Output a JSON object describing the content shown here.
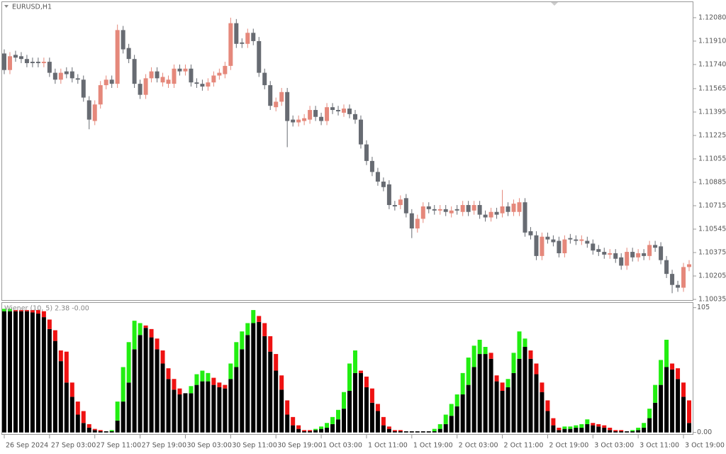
{
  "chart_data": [
    {
      "type": "candlestick",
      "title": "EURUSD,H1",
      "up_color": "#e5887b",
      "down_color": "#676b72",
      "open": [
        1.1182,
        1.117,
        1.1181,
        1.118,
        1.1178,
        1.1176,
        1.1176,
        1.1175,
        1.1176,
        1.1168,
        1.1163,
        1.1169,
        1.1169,
        1.1164,
        1.1163,
        1.1148,
        1.1133,
        1.1145,
        1.1159,
        1.1163,
        1.116,
        1.1199,
        1.1186,
        1.1178,
        1.116,
        1.1152,
        1.1164,
        1.1169,
        1.1161,
        1.116,
        1.116,
        1.1171,
        1.1169,
        1.1171,
        1.1161,
        1.116,
        1.1158,
        1.1161,
        1.1166,
        1.1167,
        1.1173,
        1.1204,
        1.119,
        1.1189,
        1.1197,
        1.1191,
        1.1168,
        1.1159,
        1.1143,
        1.1147,
        1.1154,
        1.1134,
        1.1132,
        1.1133,
        1.1134,
        1.1141,
        1.1136,
        1.1133,
        1.1143,
        1.1141,
        1.1139,
        1.1142,
        1.1138,
        1.1134,
        1.1116,
        1.1104,
        1.1096,
        1.1089,
        1.1087,
        1.1072,
        1.1072,
        1.1077,
        1.1066,
        1.1055,
        1.1062,
        1.1071,
        1.1069,
        1.1068,
        1.1069,
        1.1066,
        1.1069,
        1.1067,
        1.1072,
        1.1068,
        1.1072,
        1.1065,
        1.1063,
        1.1067,
        1.1066,
        1.1071,
        1.1067,
        1.1067,
        1.1074,
        1.1053,
        1.105,
        1.1035,
        1.1049,
        1.1047,
        1.1046,
        1.1037,
        1.1048,
        1.1047,
        1.1046,
        1.1046,
        1.1044,
        1.104,
        1.1038,
        1.1036,
        1.1037,
        1.1034,
        1.1028,
        1.1038,
        1.1034,
        1.1037,
        1.1035,
        1.1043,
        1.1042,
        1.1032,
        1.1022,
        1.1014,
        1.1012,
        1.1027
      ],
      "high": [
        1.1185,
        1.1183,
        1.1184,
        1.1183,
        1.1181,
        1.1179,
        1.1179,
        1.1179,
        1.1179,
        1.1171,
        1.1171,
        1.1172,
        1.1172,
        1.1167,
        1.1166,
        1.1151,
        1.1148,
        1.1162,
        1.1166,
        1.1166,
        1.1203,
        1.1202,
        1.1189,
        1.1181,
        1.1163,
        1.1167,
        1.1172,
        1.1172,
        1.1168,
        1.1166,
        1.1174,
        1.1174,
        1.1174,
        1.1174,
        1.1164,
        1.1163,
        1.1164,
        1.1169,
        1.1171,
        1.1176,
        1.1208,
        1.1207,
        1.1193,
        1.12,
        1.12,
        1.1194,
        1.1171,
        1.1162,
        1.115,
        1.1157,
        1.1157,
        1.1137,
        1.1137,
        1.1138,
        1.1144,
        1.1144,
        1.1139,
        1.1146,
        1.1146,
        1.1144,
        1.1145,
        1.1145,
        1.1141,
        1.1137,
        1.1119,
        1.1107,
        1.1099,
        1.1092,
        1.109,
        1.1075,
        1.1079,
        1.108,
        1.1069,
        1.1065,
        1.1074,
        1.1074,
        1.1072,
        1.1072,
        1.1072,
        1.1071,
        1.1072,
        1.1075,
        1.1075,
        1.1075,
        1.1075,
        1.1068,
        1.107,
        1.107,
        1.1083,
        1.1074,
        1.1076,
        1.1077,
        1.1077,
        1.1056,
        1.1053,
        1.1052,
        1.1052,
        1.105,
        1.1049,
        1.105,
        1.1051,
        1.105,
        1.105,
        1.1049,
        1.1047,
        1.1043,
        1.1041,
        1.104,
        1.104,
        1.1037,
        1.1041,
        1.1041,
        1.104,
        1.104,
        1.1046,
        1.1046,
        1.1045,
        1.1035,
        1.1025,
        1.1017,
        1.103,
        1.1032
      ],
      "low": [
        1.1167,
        1.1167,
        1.1176,
        1.1175,
        1.1172,
        1.1172,
        1.1172,
        1.1172,
        1.1165,
        1.116,
        1.116,
        1.1164,
        1.1161,
        1.116,
        1.1147,
        1.1127,
        1.113,
        1.1142,
        1.1156,
        1.1157,
        1.1157,
        1.1182,
        1.1175,
        1.1157,
        1.1149,
        1.1149,
        1.1161,
        1.1161,
        1.1158,
        1.1157,
        1.1157,
        1.1166,
        1.1166,
        1.1158,
        1.1157,
        1.1155,
        1.1155,
        1.1158,
        1.1163,
        1.1164,
        1.117,
        1.1186,
        1.1186,
        1.1186,
        1.1188,
        1.1165,
        1.1156,
        1.1141,
        1.114,
        1.1144,
        1.1114,
        1.1129,
        1.1129,
        1.113,
        1.1131,
        1.1133,
        1.113,
        1.113,
        1.1138,
        1.1137,
        1.1136,
        1.1135,
        1.1131,
        1.1113,
        1.1101,
        1.1093,
        1.1086,
        1.1082,
        1.1069,
        1.1068,
        1.1069,
        1.1063,
        1.1048,
        1.1052,
        1.1059,
        1.1066,
        1.1065,
        1.1065,
        1.1064,
        1.1063,
        1.1065,
        1.1064,
        1.1064,
        1.1065,
        1.1062,
        1.106,
        1.106,
        1.1062,
        1.1063,
        1.1064,
        1.1064,
        1.1064,
        1.1049,
        1.1047,
        1.1032,
        1.1032,
        1.1044,
        1.1042,
        1.1034,
        1.1034,
        1.1044,
        1.1043,
        1.1043,
        1.1041,
        1.1036,
        1.1035,
        1.1033,
        1.1033,
        1.103,
        1.1025,
        1.1025,
        1.1031,
        1.1031,
        1.1032,
        1.1032,
        1.1038,
        1.1029,
        1.1019,
        1.1008,
        1.1009,
        1.1009,
        1.1024
      ],
      "close": [
        1.117,
        1.118,
        1.1179,
        1.1178,
        1.1175,
        1.1175,
        1.1175,
        1.1176,
        1.1168,
        1.1163,
        1.1168,
        1.1167,
        1.1164,
        1.1163,
        1.115,
        1.1134,
        1.1145,
        1.1159,
        1.1163,
        1.116,
        1.1199,
        1.1185,
        1.1178,
        1.116,
        1.1152,
        1.1164,
        1.1169,
        1.1164,
        1.1165,
        1.1163,
        1.1171,
        1.1169,
        1.1171,
        1.1161,
        1.116,
        1.1158,
        1.1161,
        1.1166,
        1.1168,
        1.1173,
        1.1204,
        1.1189,
        1.1189,
        1.1197,
        1.1191,
        1.1168,
        1.1159,
        1.1144,
        1.1147,
        1.1154,
        1.1133,
        1.1132,
        1.1134,
        1.1135,
        1.1141,
        1.1136,
        1.1133,
        1.1143,
        1.1141,
        1.114,
        1.1142,
        1.1138,
        1.1134,
        1.1116,
        1.1104,
        1.1096,
        1.1089,
        1.1085,
        1.1072,
        1.1071,
        1.1076,
        1.1066,
        1.1055,
        1.1062,
        1.1071,
        1.1069,
        1.1068,
        1.1069,
        1.1067,
        1.1068,
        1.1068,
        1.1072,
        1.1067,
        1.1072,
        1.1065,
        1.1063,
        1.1067,
        1.1065,
        1.1071,
        1.1067,
        1.1073,
        1.1074,
        1.1052,
        1.105,
        1.1035,
        1.1049,
        1.1047,
        1.1045,
        1.1037,
        1.1047,
        1.1047,
        1.1046,
        1.1047,
        1.1044,
        1.1039,
        1.1038,
        1.1036,
        1.1037,
        1.1033,
        1.1028,
        1.1038,
        1.1034,
        1.1037,
        1.1035,
        1.1043,
        1.1041,
        1.1032,
        1.1022,
        1.1014,
        1.1012,
        1.1027,
        1.1029
      ],
      "xlim": [
        -0.5,
        121.75
      ],
      "ylim": [
        1.10025,
        1.12198
      ],
      "yticks": [
        {
          "value": 1.1208,
          "label": "1.12080"
        },
        {
          "value": 1.1191,
          "label": "1.11910"
        },
        {
          "value": 1.1174,
          "label": "1.11740"
        },
        {
          "value": 1.11565,
          "label": "1.11565"
        },
        {
          "value": 1.11395,
          "label": "1.11395"
        },
        {
          "value": 1.11225,
          "label": "1.11225"
        },
        {
          "value": 1.11055,
          "label": "1.11055"
        },
        {
          "value": 1.10885,
          "label": "1.10885"
        },
        {
          "value": 1.10715,
          "label": "1.10715"
        },
        {
          "value": 1.10545,
          "label": "1.10545"
        },
        {
          "value": 1.10375,
          "label": "1.10375"
        },
        {
          "value": 1.10205,
          "label": "1.10205"
        },
        {
          "value": 1.10035,
          "label": "1.10035"
        }
      ],
      "xticks": [
        {
          "value": 0,
          "label": "26 Sep 2024"
        },
        {
          "value": 8,
          "label": "27 Sep 03:00"
        },
        {
          "value": 16,
          "label": "27 Sep 11:00"
        },
        {
          "value": 24,
          "label": "27 Sep 19:00"
        },
        {
          "value": 32,
          "label": "30 Sep 03:00"
        },
        {
          "value": 40,
          "label": "30 Sep 11:00"
        },
        {
          "value": 48,
          "label": "30 Sep 19:00"
        },
        {
          "value": 56,
          "label": "1 Oct 03:00"
        },
        {
          "value": 64,
          "label": "1 Oct 11:00"
        },
        {
          "value": 72,
          "label": "1 Oct 19:00"
        },
        {
          "value": 80,
          "label": "2 Oct 03:00"
        },
        {
          "value": 88,
          "label": "2 Oct 11:00"
        },
        {
          "value": 96,
          "label": "2 Oct 19:00"
        },
        {
          "value": 104,
          "label": "3 Oct 03:00"
        },
        {
          "value": 112,
          "label": "3 Oct 11:00"
        },
        {
          "value": 120,
          "label": "3 Oct 19:00"
        }
      ]
    },
    {
      "type": "stacked-bar",
      "title": "Wiener (10, 5) 2.38 -0.00",
      "ylim": [
        -2,
        109
      ],
      "yticks": [
        105,
        {
          "value": 0,
          "label": "0.00"
        }
      ],
      "series": [
        {
          "color": "#000000",
          "values": [
            102,
            102,
            102,
            102,
            102,
            101,
            100,
            97,
            87,
            77,
            60,
            42,
            30,
            15,
            8,
            4,
            2,
            1,
            1,
            1,
            10,
            26,
            42,
            70,
            82,
            88,
            80,
            70,
            58,
            45,
            36,
            32,
            33,
            33,
            40,
            43,
            43,
            40,
            38,
            37,
            45,
            55,
            70,
            82,
            92,
            93,
            81,
            68,
            52,
            36,
            15,
            6,
            3,
            1,
            1,
            2,
            3,
            4,
            7,
            11,
            20,
            35,
            50,
            50,
            38,
            25,
            18,
            6,
            3,
            1,
            1,
            1,
            1,
            1,
            1,
            1,
            1,
            3,
            7,
            14,
            22,
            32,
            40,
            55,
            66,
            66,
            62,
            43,
            35,
            38,
            50,
            62,
            72,
            62,
            49,
            34,
            18,
            6,
            2,
            3,
            3,
            4,
            4,
            7,
            6,
            5,
            4,
            2,
            1,
            1,
            1,
            1,
            2,
            4,
            12,
            25,
            40,
            55,
            53,
            45,
            30,
            8
          ]
        },
        {
          "color": "#22ee11",
          "values": [
            2,
            2,
            0,
            0,
            0,
            0,
            0,
            0,
            0,
            0,
            0,
            0,
            0,
            0,
            0,
            0,
            0,
            0,
            0,
            1,
            16,
            29,
            34,
            24,
            10,
            0,
            0,
            0,
            0,
            0,
            0,
            0,
            0,
            6,
            9,
            9,
            7,
            0,
            0,
            0,
            13,
            21,
            15,
            10,
            11,
            0,
            0,
            0,
            0,
            0,
            0,
            0,
            0,
            0,
            0,
            1,
            2,
            4,
            6,
            8,
            14,
            23,
            19,
            0,
            0,
            0,
            0,
            0,
            0,
            0,
            0,
            0,
            0,
            0,
            0,
            0,
            2,
            4,
            8,
            10,
            10,
            18,
            23,
            18,
            12,
            6,
            0,
            0,
            0,
            7,
            17,
            23,
            7,
            0,
            0,
            0,
            0,
            0,
            0,
            2,
            2,
            2,
            3,
            4,
            0,
            0,
            0,
            0,
            0,
            0,
            0,
            1,
            2,
            4,
            8,
            15,
            21,
            23,
            0,
            0,
            0,
            0
          ]
        },
        {
          "color": "#ee1111",
          "values": [
            0,
            0,
            1,
            1,
            1,
            2,
            3,
            5,
            8,
            9,
            9,
            26,
            12,
            11,
            10,
            3,
            1,
            1,
            0,
            0,
            0,
            0,
            0,
            0,
            0,
            2,
            7,
            9,
            11,
            9,
            9,
            5,
            0,
            0,
            0,
            0,
            0,
            6,
            4,
            3,
            0,
            0,
            0,
            0,
            0,
            5,
            11,
            13,
            14,
            12,
            12,
            7,
            3,
            1,
            1,
            0,
            0,
            0,
            0,
            0,
            0,
            0,
            0,
            2,
            9,
            12,
            6,
            7,
            2,
            1,
            1,
            0,
            0,
            0,
            0,
            0,
            0,
            0,
            0,
            0,
            0,
            0,
            0,
            0,
            0,
            0,
            5,
            5,
            7,
            0,
            0,
            0,
            0,
            7,
            9,
            8,
            9,
            6,
            2,
            0,
            0,
            0,
            0,
            0,
            2,
            2,
            2,
            2,
            1,
            1,
            0,
            0,
            0,
            0,
            0,
            0,
            0,
            0,
            5,
            9,
            12,
            19
          ]
        }
      ]
    }
  ]
}
